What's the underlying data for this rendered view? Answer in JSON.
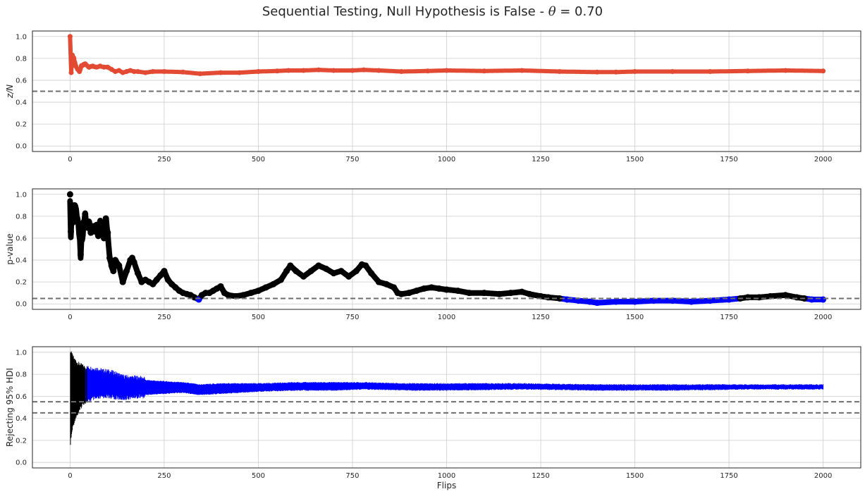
{
  "chart_data": {
    "title_prefix": "Sequential Testing, Null Hypothesis is False - ",
    "title_symbol": "θ",
    "title_suffix": " = 0.70",
    "shared": {
      "xlabel": "Flips",
      "xlim": [
        -100,
        2100
      ],
      "xticks": [
        0,
        250,
        500,
        750,
        1000,
        1250,
        1500,
        1750,
        2000
      ],
      "yticks": [
        0.0,
        0.2,
        0.4,
        0.6,
        0.8,
        1.0
      ],
      "ylim": [
        -0.05,
        1.05
      ],
      "grid": true,
      "n_flips": 2000
    },
    "panels": [
      {
        "type": "scatter",
        "ylabel": "z/N",
        "color": "#e24a33",
        "reference_lines": [
          0.5
        ],
        "x": [
          0,
          3,
          6,
          10,
          15,
          20,
          25,
          30,
          40,
          50,
          60,
          70,
          80,
          90,
          100,
          110,
          120,
          130,
          140,
          150,
          160,
          170,
          180,
          200,
          220,
          250,
          300,
          345,
          400,
          450,
          500,
          550,
          580,
          620,
          660,
          700,
          750,
          780,
          820,
          880,
          950,
          1000,
          1100,
          1200,
          1300,
          1400,
          1450,
          1500,
          1600,
          1700,
          1800,
          1900,
          2000
        ],
        "y": [
          1.0,
          0.67,
          0.83,
          0.8,
          0.73,
          0.7,
          0.68,
          0.73,
          0.75,
          0.72,
          0.73,
          0.72,
          0.73,
          0.72,
          0.72,
          0.7,
          0.68,
          0.69,
          0.67,
          0.68,
          0.69,
          0.68,
          0.68,
          0.67,
          0.68,
          0.68,
          0.675,
          0.66,
          0.67,
          0.67,
          0.68,
          0.685,
          0.69,
          0.69,
          0.695,
          0.69,
          0.69,
          0.695,
          0.69,
          0.68,
          0.685,
          0.69,
          0.685,
          0.69,
          0.68,
          0.675,
          0.675,
          0.68,
          0.68,
          0.68,
          0.685,
          0.69,
          0.685
        ]
      },
      {
        "type": "scatter",
        "ylabel": "p-value",
        "color_default": "#000000",
        "color_reject": "#0000ff",
        "threshold": 0.05,
        "reference_lines": [
          0.05
        ],
        "x": [
          0,
          2,
          5,
          8,
          12,
          16,
          20,
          25,
          28,
          32,
          40,
          45,
          50,
          55,
          60,
          65,
          70,
          75,
          80,
          85,
          90,
          95,
          100,
          105,
          110,
          115,
          120,
          130,
          140,
          150,
          160,
          165,
          170,
          180,
          190,
          200,
          210,
          220,
          230,
          240,
          250,
          260,
          270,
          280,
          290,
          300,
          310,
          320,
          330,
          342,
          350,
          360,
          370,
          380,
          390,
          400,
          410,
          420,
          440,
          460,
          480,
          500,
          520,
          540,
          560,
          575,
          585,
          600,
          620,
          640,
          660,
          680,
          700,
          720,
          740,
          760,
          775,
          785,
          800,
          820,
          840,
          860,
          870,
          880,
          900,
          920,
          940,
          960,
          980,
          1000,
          1030,
          1060,
          1100,
          1140,
          1170,
          1200,
          1220,
          1250,
          1270,
          1300,
          1320,
          1350,
          1380,
          1400,
          1450,
          1500,
          1550,
          1600,
          1650,
          1700,
          1750,
          1780,
          1800,
          1830,
          1860,
          1900,
          1930,
          1950,
          1970,
          2000
        ],
        "y": [
          1.0,
          0.66,
          0.9,
          0.76,
          0.9,
          0.82,
          0.75,
          0.65,
          0.45,
          0.6,
          0.82,
          0.7,
          0.75,
          0.65,
          0.7,
          0.68,
          0.72,
          0.62,
          0.75,
          0.7,
          0.6,
          0.78,
          0.65,
          0.42,
          0.35,
          0.3,
          0.4,
          0.35,
          0.2,
          0.3,
          0.4,
          0.42,
          0.38,
          0.28,
          0.2,
          0.22,
          0.2,
          0.18,
          0.22,
          0.26,
          0.3,
          0.22,
          0.18,
          0.15,
          0.12,
          0.1,
          0.09,
          0.08,
          0.06,
          0.04,
          0.08,
          0.1,
          0.1,
          0.12,
          0.14,
          0.16,
          0.1,
          0.08,
          0.07,
          0.08,
          0.1,
          0.12,
          0.15,
          0.18,
          0.22,
          0.3,
          0.35,
          0.3,
          0.25,
          0.3,
          0.35,
          0.32,
          0.28,
          0.3,
          0.25,
          0.3,
          0.36,
          0.35,
          0.28,
          0.2,
          0.18,
          0.15,
          0.1,
          0.09,
          0.1,
          0.12,
          0.14,
          0.15,
          0.14,
          0.13,
          0.12,
          0.1,
          0.1,
          0.09,
          0.1,
          0.11,
          0.09,
          0.07,
          0.06,
          0.05,
          0.04,
          0.03,
          0.02,
          0.01,
          0.02,
          0.02,
          0.03,
          0.03,
          0.02,
          0.03,
          0.04,
          0.05,
          0.06,
          0.06,
          0.07,
          0.08,
          0.06,
          0.05,
          0.04,
          0.04
        ]
      },
      {
        "type": "errorbar",
        "ylabel": "Rejecting 95% HDI",
        "color_default": "#000000",
        "color_reject": "#0000ff",
        "rope": [
          0.45,
          0.55
        ],
        "reference_lines": [
          0.45,
          0.55
        ],
        "x": [
          0,
          3,
          6,
          10,
          15,
          20,
          25,
          30,
          35,
          40,
          50,
          60,
          70,
          80,
          90,
          100,
          120,
          140,
          160,
          180,
          200,
          250,
          300,
          345,
          400,
          500,
          600,
          700,
          780,
          900,
          1000,
          1200,
          1400,
          1600,
          1800,
          2000
        ],
        "lower": [
          0.17,
          0.25,
          0.32,
          0.38,
          0.44,
          0.46,
          0.49,
          0.53,
          0.56,
          0.57,
          0.58,
          0.6,
          0.6,
          0.61,
          0.62,
          0.62,
          0.61,
          0.6,
          0.61,
          0.62,
          0.62,
          0.63,
          0.64,
          0.62,
          0.63,
          0.65,
          0.66,
          0.66,
          0.67,
          0.66,
          0.66,
          0.67,
          0.66,
          0.66,
          0.67,
          0.67
        ],
        "upper": [
          0.99,
          0.97,
          0.95,
          0.92,
          0.9,
          0.88,
          0.87,
          0.86,
          0.85,
          0.84,
          0.84,
          0.83,
          0.83,
          0.82,
          0.81,
          0.81,
          0.79,
          0.76,
          0.75,
          0.75,
          0.74,
          0.73,
          0.72,
          0.7,
          0.71,
          0.71,
          0.72,
          0.72,
          0.72,
          0.71,
          0.71,
          0.71,
          0.7,
          0.7,
          0.7,
          0.7
        ]
      }
    ]
  }
}
